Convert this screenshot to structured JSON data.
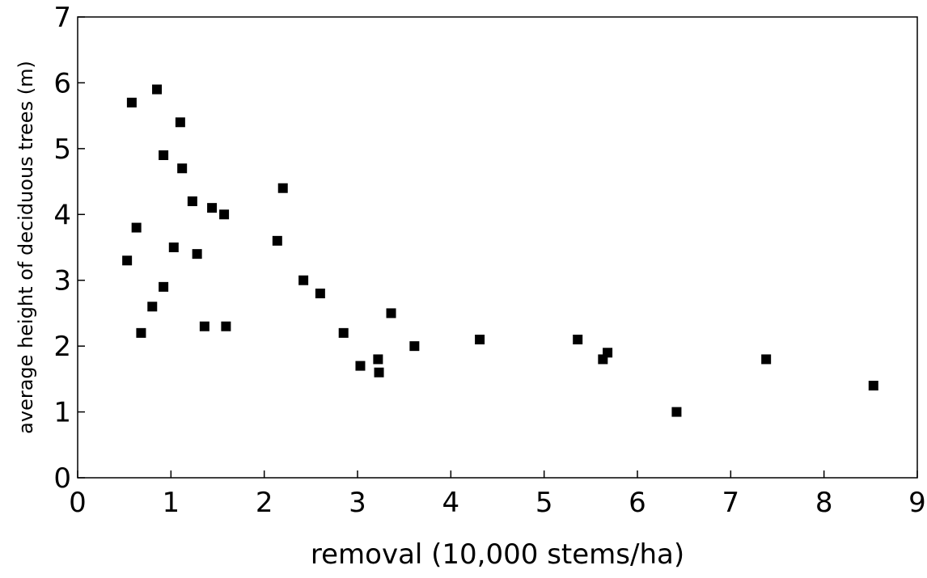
{
  "chart_data": {
    "type": "scatter",
    "title": "",
    "xlabel": "removal (10,000 stems/ha)",
    "ylabel": "average height of deciduous trees (m)",
    "xlim": [
      0,
      9
    ],
    "ylim": [
      0,
      7
    ],
    "x_ticks": [
      "0",
      "1",
      "2",
      "3",
      "4",
      "5",
      "6",
      "7",
      "8",
      "9"
    ],
    "y_ticks": [
      "0",
      "1",
      "2",
      "3",
      "4",
      "5",
      "6",
      "7"
    ],
    "grid": false,
    "legend": "none",
    "marker": "square",
    "marker_color": "#000000",
    "series": [
      {
        "points": [
          {
            "x": 0.53,
            "y": 3.3
          },
          {
            "x": 0.58,
            "y": 5.7
          },
          {
            "x": 0.63,
            "y": 3.8
          },
          {
            "x": 0.68,
            "y": 2.2
          },
          {
            "x": 0.8,
            "y": 2.6
          },
          {
            "x": 0.85,
            "y": 5.9
          },
          {
            "x": 0.92,
            "y": 4.9
          },
          {
            "x": 0.92,
            "y": 2.9
          },
          {
            "x": 1.03,
            "y": 3.5
          },
          {
            "x": 1.1,
            "y": 5.4
          },
          {
            "x": 1.12,
            "y": 4.7
          },
          {
            "x": 1.23,
            "y": 4.2
          },
          {
            "x": 1.28,
            "y": 3.4
          },
          {
            "x": 1.36,
            "y": 2.3
          },
          {
            "x": 1.44,
            "y": 4.1
          },
          {
            "x": 1.57,
            "y": 4.0
          },
          {
            "x": 1.59,
            "y": 2.3
          },
          {
            "x": 2.14,
            "y": 3.6
          },
          {
            "x": 2.2,
            "y": 4.4
          },
          {
            "x": 2.42,
            "y": 3.0
          },
          {
            "x": 2.6,
            "y": 2.8
          },
          {
            "x": 2.85,
            "y": 2.2
          },
          {
            "x": 3.03,
            "y": 1.7
          },
          {
            "x": 3.22,
            "y": 1.8
          },
          {
            "x": 3.23,
            "y": 1.6
          },
          {
            "x": 3.36,
            "y": 2.5
          },
          {
            "x": 3.61,
            "y": 2.0
          },
          {
            "x": 4.31,
            "y": 2.1
          },
          {
            "x": 5.36,
            "y": 2.1
          },
          {
            "x": 5.63,
            "y": 1.8
          },
          {
            "x": 5.68,
            "y": 1.9
          },
          {
            "x": 6.42,
            "y": 1.0
          },
          {
            "x": 7.38,
            "y": 1.8
          },
          {
            "x": 8.53,
            "y": 1.4
          }
        ]
      }
    ]
  }
}
